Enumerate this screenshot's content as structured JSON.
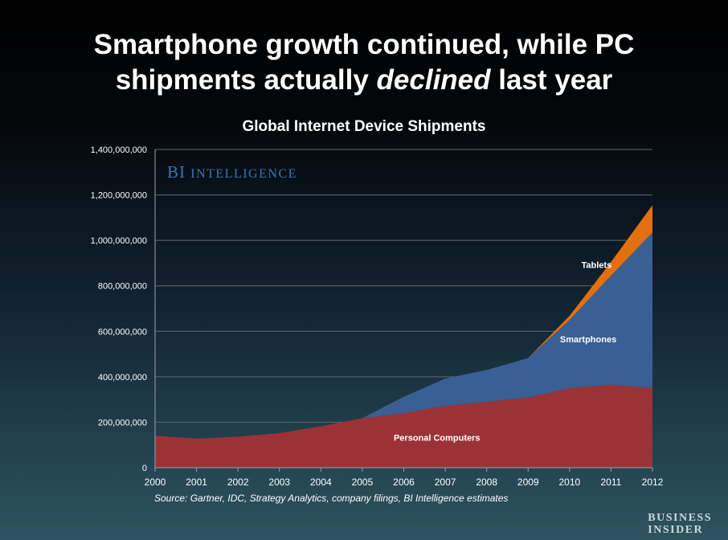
{
  "headline": {
    "line1": "Smartphone growth continued, while PC",
    "line2_before": "shipments actually ",
    "line2_emph": "declined",
    "line2_after": " last year"
  },
  "brand_watermark": "BI INTELLIGENCE",
  "source_note": "Source: Gartner, IDC, Strategy Analytics, company filings, BI Intelligence estimates",
  "logo": {
    "line1": "BUSINESS",
    "line2": "INSIDER"
  },
  "colors": {
    "personal_computers": "#9b3336",
    "smartphones": "#3a5f93",
    "tablets": "#e2700f",
    "brand": "#3f74b6"
  },
  "chart_data": {
    "type": "area",
    "stacked": true,
    "title": "Global Internet Device Shipments",
    "xlabel": "",
    "ylabel": "",
    "x": [
      "2000",
      "2001",
      "2002",
      "2003",
      "2004",
      "2005",
      "2006",
      "2007",
      "2008",
      "2009",
      "2010",
      "2011",
      "2012"
    ],
    "yticks": [
      "0",
      "200,000,000",
      "400,000,000",
      "600,000,000",
      "800,000,000",
      "1,000,000,000",
      "1,200,000,000",
      "1,400,000,000"
    ],
    "ylim": [
      0,
      1400000000
    ],
    "grid": true,
    "series": [
      {
        "name": "Personal Computers",
        "values": [
          140000000,
          128000000,
          136000000,
          152000000,
          182000000,
          218000000,
          240000000,
          272000000,
          290000000,
          308000000,
          350000000,
          365000000,
          350000000
        ]
      },
      {
        "name": "Smartphones",
        "values": [
          0,
          0,
          0,
          0,
          0,
          0,
          72000000,
          120000000,
          140000000,
          174000000,
          300000000,
          480000000,
          685000000
        ]
      },
      {
        "name": "Tablets",
        "values": [
          0,
          0,
          0,
          0,
          0,
          0,
          0,
          0,
          0,
          0,
          18000000,
          60000000,
          120000000
        ]
      }
    ]
  }
}
